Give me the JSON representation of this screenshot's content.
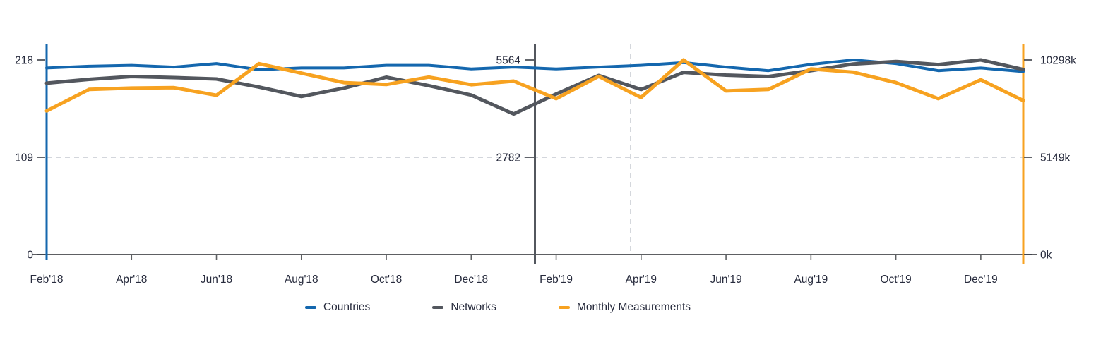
{
  "chart_data": {
    "type": "line",
    "x_categories": [
      "Feb'18",
      "Mar'18",
      "Apr'18",
      "May'18",
      "Jun'18",
      "Jul'18",
      "Aug'18",
      "Sep'18",
      "Oct'18",
      "Nov'18",
      "Dec'18",
      "Jan'19",
      "Feb'19",
      "Mar'19",
      "Apr'19",
      "May'19",
      "Jun'19",
      "Jul'19",
      "Aug'19",
      "Sep'19",
      "Oct'19",
      "Nov'19",
      "Dec'19",
      "Jan'20"
    ],
    "x_axis_tick_every": 2,
    "x_tick_labels_shown": [
      "Feb'18",
      "Apr'18",
      "Jun'18",
      "Aug'18",
      "Oct'18",
      "Dec'18",
      "Feb'19",
      "Apr'19",
      "Jun'19",
      "Aug'19",
      "Oct'19",
      "Dec'19"
    ],
    "series": [
      {
        "name": "Countries",
        "color": "#1467AE",
        "axis": "left",
        "values": [
          209,
          211,
          212,
          210,
          214,
          207,
          209,
          209,
          212,
          212,
          208,
          210,
          208,
          210,
          212,
          215,
          210,
          206,
          213,
          218,
          214,
          206,
          209,
          205
        ]
      },
      {
        "name": "Networks",
        "color": "#53575E",
        "axis": "middle",
        "values": [
          4900,
          5010,
          5090,
          5060,
          5020,
          4790,
          4520,
          4760,
          5070,
          4830,
          4560,
          4020,
          4590,
          5120,
          4720,
          5210,
          5130,
          5090,
          5260,
          5450,
          5520,
          5430,
          5564,
          5290
        ]
      },
      {
        "name": "Monthly Measurements",
        "color": "#F7A220",
        "axis": "right",
        "values": [
          7600,
          8740,
          8810,
          8830,
          8430,
          10100,
          9600,
          9100,
          9000,
          9390,
          8990,
          9180,
          8250,
          9430,
          8310,
          10298,
          8660,
          8740,
          9820,
          9650,
          9100,
          8250,
          9250,
          8150
        ]
      }
    ],
    "axes": {
      "left": {
        "series": "countries",
        "color": "#1467AE",
        "max": 218,
        "ylim": [
          0,
          218
        ],
        "ticks": [
          {
            "label": "218",
            "value": 218
          },
          {
            "label": "109",
            "value": 109
          },
          {
            "label": "0",
            "value": 0
          }
        ]
      },
      "middle": {
        "series": "networks",
        "color": "#53575E",
        "max": 5564,
        "ylim": [
          0,
          5564
        ],
        "ticks": [
          {
            "label": "5564",
            "value": 5564
          },
          {
            "label": "2782",
            "value": 2782
          }
        ]
      },
      "right": {
        "series": "monthly-measurements",
        "color": "#F7A220",
        "max": 10298,
        "ylim": [
          0,
          10298
        ],
        "ticks": [
          {
            "label": "10298k",
            "value": 10298
          },
          {
            "label": "5149k",
            "value": 5149
          },
          {
            "label": "0k",
            "value": 0
          }
        ]
      }
    },
    "reference_lines": {
      "horizontal_value_fraction": 0.5,
      "vertical_x_fraction": 0.598
    },
    "grid": "dashed-reference-lines-only",
    "legend_position": "bottom",
    "title": ""
  },
  "legend": {
    "items": [
      {
        "label": "Countries",
        "color": "#1467AE"
      },
      {
        "label": "Networks",
        "color": "#53575E"
      },
      {
        "label": "Monthly Measurements",
        "color": "#F7A220"
      }
    ]
  },
  "text_color": "#272b3d"
}
